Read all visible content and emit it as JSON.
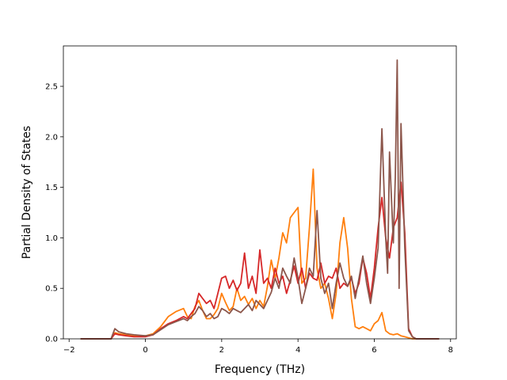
{
  "chart_data": {
    "type": "line",
    "title": "",
    "xlabel": "Frequency (THz)",
    "ylabel": "Partial Density of States",
    "xlim": [
      -2.15,
      8.15
    ],
    "ylim": [
      0.0,
      2.9
    ],
    "xticks": [
      -2,
      0,
      2,
      4,
      6,
      8
    ],
    "xtick_labels": [
      "−2",
      "0",
      "2",
      "4",
      "6",
      "8"
    ],
    "yticks": [
      0.0,
      0.5,
      1.0,
      1.5,
      2.0,
      2.5
    ],
    "ytick_labels": [
      "0.0",
      "0.5",
      "1.0",
      "1.5",
      "2.0",
      "2.5"
    ],
    "grid": false,
    "legend": "none",
    "series": [
      {
        "color": "#ff7f0e",
        "x": [
          -1.7,
          -0.9,
          -0.8,
          -0.7,
          -0.5,
          -0.3,
          0.0,
          0.2,
          0.4,
          0.6,
          0.8,
          1.0,
          1.1,
          1.2,
          1.3,
          1.4,
          1.5,
          1.6,
          1.7,
          1.8,
          1.9,
          2.0,
          2.1,
          2.2,
          2.3,
          2.4,
          2.5,
          2.6,
          2.7,
          2.8,
          2.9,
          3.0,
          3.1,
          3.2,
          3.3,
          3.4,
          3.5,
          3.6,
          3.7,
          3.8,
          3.9,
          4.0,
          4.1,
          4.2,
          4.3,
          4.4,
          4.5,
          4.6,
          4.7,
          4.8,
          4.9,
          5.0,
          5.1,
          5.2,
          5.3,
          5.4,
          5.5,
          5.6,
          5.7,
          5.8,
          5.9,
          6.0,
          6.1,
          6.2,
          6.3,
          6.4,
          6.5,
          6.6,
          6.7,
          6.8,
          6.9,
          7.0,
          7.1,
          7.3,
          7.7
        ],
        "values": [
          0.0,
          0.0,
          0.06,
          0.05,
          0.04,
          0.03,
          0.03,
          0.05,
          0.12,
          0.22,
          0.27,
          0.3,
          0.22,
          0.2,
          0.32,
          0.38,
          0.28,
          0.2,
          0.2,
          0.24,
          0.3,
          0.45,
          0.36,
          0.28,
          0.32,
          0.5,
          0.38,
          0.42,
          0.34,
          0.4,
          0.3,
          0.38,
          0.32,
          0.52,
          0.78,
          0.6,
          0.8,
          1.05,
          0.95,
          1.2,
          1.25,
          1.3,
          0.55,
          0.6,
          1.1,
          1.68,
          0.7,
          0.5,
          0.55,
          0.4,
          0.2,
          0.45,
          0.95,
          1.2,
          0.9,
          0.4,
          0.12,
          0.1,
          0.12,
          0.1,
          0.08,
          0.15,
          0.18,
          0.26,
          0.08,
          0.05,
          0.04,
          0.05,
          0.03,
          0.02,
          0.01,
          0.0,
          0.0,
          0.0,
          0.0
        ]
      },
      {
        "color": "#d62728",
        "x": [
          -1.7,
          -0.9,
          -0.8,
          -0.7,
          -0.5,
          -0.3,
          0.0,
          0.2,
          0.4,
          0.6,
          0.8,
          1.0,
          1.1,
          1.2,
          1.3,
          1.4,
          1.5,
          1.6,
          1.7,
          1.8,
          1.9,
          2.0,
          2.1,
          2.2,
          2.3,
          2.4,
          2.5,
          2.6,
          2.7,
          2.8,
          2.9,
          3.0,
          3.1,
          3.2,
          3.3,
          3.4,
          3.5,
          3.6,
          3.7,
          3.8,
          3.9,
          4.0,
          4.1,
          4.2,
          4.3,
          4.4,
          4.5,
          4.6,
          4.7,
          4.8,
          4.9,
          5.0,
          5.1,
          5.2,
          5.3,
          5.4,
          5.5,
          5.6,
          5.7,
          5.8,
          5.9,
          6.0,
          6.1,
          6.2,
          6.3,
          6.4,
          6.5,
          6.6,
          6.7,
          6.8,
          6.9,
          7.0,
          7.1,
          7.3,
          7.7
        ],
        "values": [
          0.0,
          0.0,
          0.05,
          0.04,
          0.03,
          0.02,
          0.02,
          0.04,
          0.1,
          0.15,
          0.18,
          0.22,
          0.2,
          0.25,
          0.3,
          0.45,
          0.4,
          0.35,
          0.38,
          0.3,
          0.45,
          0.6,
          0.62,
          0.5,
          0.58,
          0.48,
          0.55,
          0.85,
          0.5,
          0.62,
          0.45,
          0.88,
          0.55,
          0.6,
          0.5,
          0.7,
          0.55,
          0.62,
          0.45,
          0.58,
          0.72,
          0.55,
          0.7,
          0.5,
          0.65,
          0.6,
          0.58,
          0.75,
          0.55,
          0.62,
          0.6,
          0.7,
          0.5,
          0.55,
          0.52,
          0.6,
          0.45,
          0.55,
          0.8,
          0.65,
          0.4,
          0.7,
          1.1,
          1.4,
          1.0,
          0.8,
          1.1,
          1.2,
          1.55,
          1.05,
          0.1,
          0.02,
          0.0,
          0.0,
          0.0
        ]
      },
      {
        "color": "#8c564b",
        "x": [
          -1.7,
          -0.9,
          -0.8,
          -0.7,
          -0.5,
          -0.3,
          0.0,
          0.2,
          0.4,
          0.6,
          0.8,
          1.0,
          1.1,
          1.2,
          1.3,
          1.4,
          1.5,
          1.6,
          1.7,
          1.8,
          1.9,
          2.0,
          2.1,
          2.2,
          2.3,
          2.4,
          2.5,
          2.6,
          2.7,
          2.8,
          2.9,
          3.0,
          3.1,
          3.2,
          3.3,
          3.4,
          3.5,
          3.6,
          3.7,
          3.8,
          3.9,
          4.0,
          4.1,
          4.2,
          4.3,
          4.4,
          4.5,
          4.6,
          4.7,
          4.8,
          4.9,
          5.0,
          5.1,
          5.2,
          5.3,
          5.4,
          5.5,
          5.6,
          5.7,
          5.8,
          5.9,
          6.0,
          6.1,
          6.2,
          6.3,
          6.35,
          6.4,
          6.5,
          6.55,
          6.6,
          6.65,
          6.7,
          6.8,
          6.9,
          7.0,
          7.1,
          7.3,
          7.7
        ],
        "values": [
          0.0,
          0.0,
          0.1,
          0.07,
          0.05,
          0.04,
          0.03,
          0.04,
          0.09,
          0.14,
          0.17,
          0.2,
          0.18,
          0.22,
          0.25,
          0.32,
          0.28,
          0.22,
          0.25,
          0.2,
          0.22,
          0.3,
          0.28,
          0.25,
          0.3,
          0.28,
          0.26,
          0.3,
          0.34,
          0.28,
          0.38,
          0.34,
          0.3,
          0.38,
          0.46,
          0.6,
          0.5,
          0.7,
          0.62,
          0.55,
          0.8,
          0.6,
          0.35,
          0.5,
          0.7,
          0.62,
          1.27,
          0.6,
          0.45,
          0.55,
          0.3,
          0.55,
          0.75,
          0.6,
          0.52,
          0.62,
          0.4,
          0.6,
          0.82,
          0.55,
          0.35,
          0.6,
          0.9,
          2.08,
          1.0,
          0.65,
          1.85,
          0.95,
          1.6,
          2.76,
          0.5,
          2.13,
          0.9,
          0.08,
          0.02,
          0.0,
          0.0,
          0.0
        ]
      }
    ]
  }
}
